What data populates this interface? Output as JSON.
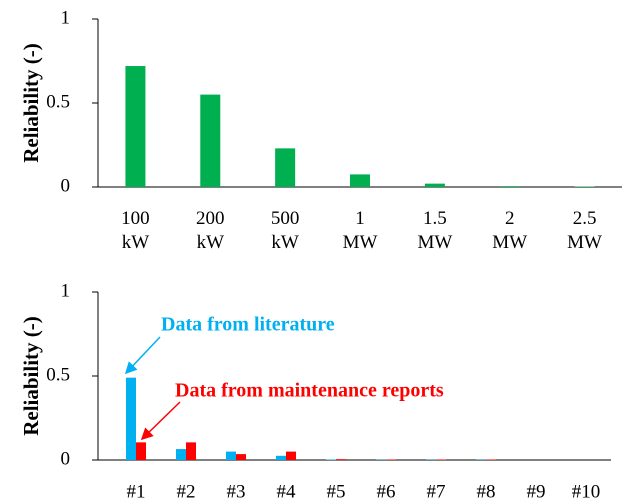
{
  "chart_data": [
    {
      "type": "bar",
      "ylabel": "Reliability (-)",
      "categories": [
        "100 kW",
        "200 kW",
        "500 kW",
        "1 MW",
        "1.5 MW",
        "2 MW",
        "2.5 MW"
      ],
      "values": [
        0.72,
        0.55,
        0.23,
        0.075,
        0.02,
        0.005,
        0.003
      ],
      "color": "#00b050",
      "ylim": [
        0,
        1
      ],
      "yticks": [
        0,
        0.5,
        1
      ]
    },
    {
      "type": "grouped_bar",
      "ylabel": "Reliability (-)",
      "categories": [
        "#1",
        "#2",
        "#3",
        "#4",
        "#5",
        "#6",
        "#7",
        "#8",
        "#9",
        "#10"
      ],
      "series": [
        {
          "name": "Data from literature",
          "color": "#00b0f0",
          "values": [
            0.49,
            0.065,
            0.05,
            0.025,
            0.003,
            0.002,
            0.002,
            0.002,
            0,
            0
          ]
        },
        {
          "name": "Data from maintenance reports",
          "color": "#ff0000",
          "values": [
            0.105,
            0.105,
            0.035,
            0.05,
            0.005,
            0.003,
            0.003,
            0.003,
            0,
            0
          ]
        }
      ],
      "ylim": [
        0,
        1
      ],
      "yticks": [
        0,
        0.5,
        1
      ]
    }
  ]
}
